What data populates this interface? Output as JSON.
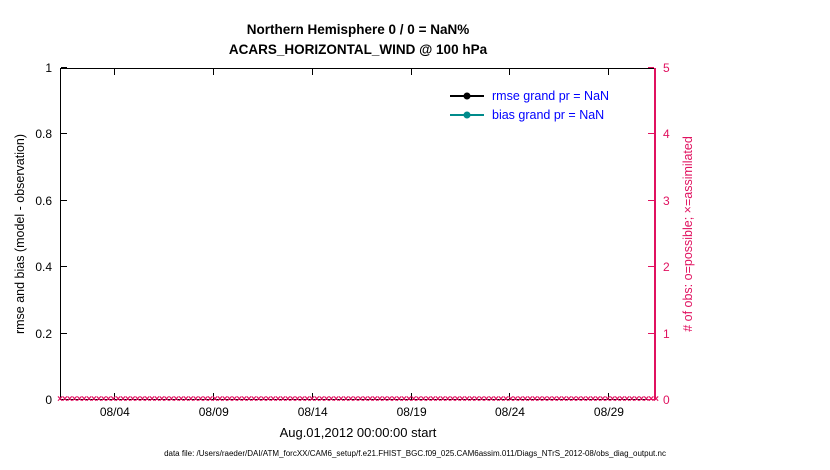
{
  "title": {
    "line1": "Northern Hemisphere 0 / 0 = NaN%",
    "line2": "ACARS_HORIZONTAL_WIND @ 100 hPa"
  },
  "axes": {
    "left_label": "rmse and bias (model - observation)",
    "right_label": "# of obs: o=possible; ×=assimilated",
    "x_label": "Aug.01,2012 00:00:00 start",
    "left_ticks": [
      "0",
      "0.2",
      "0.4",
      "0.6",
      "0.8",
      "1"
    ],
    "right_ticks": [
      "0",
      "1",
      "2",
      "3",
      "4",
      "5"
    ],
    "x_ticks": [
      "08/04",
      "08/09",
      "08/14",
      "08/19",
      "08/24",
      "08/29"
    ]
  },
  "legend": {
    "items": [
      {
        "label": "rmse grand pr = NaN",
        "color": "#000000"
      },
      {
        "label": "bias grand pr = NaN",
        "color": "#008b8b"
      }
    ],
    "text_color": "#0000ff"
  },
  "colors": {
    "axis": "#000000",
    "obs_axis": "#e0115f"
  },
  "footer": "data file: /Users/raeder/DAI/ATM_forcXX/CAM6_setup/f.e21.FHIST_BGC.f09_025.CAM6assim.011/Diags_NTrS_2012-08/obs_diag_output.nc",
  "chart_data": {
    "type": "line",
    "title": "Northern Hemisphere 0 / 0 = NaN% — ACARS_HORIZONTAL_WIND @ 100 hPa",
    "xlabel": "Aug.01,2012 00:00:00 start",
    "x_tick_labels": [
      "08/04",
      "08/09",
      "08/14",
      "08/19",
      "08/24",
      "08/29"
    ],
    "x_range": [
      "2012-08-01",
      "2012-08-31"
    ],
    "left_axis": {
      "label": "rmse and bias (model - observation)",
      "ylim": [
        0,
        1
      ]
    },
    "right_axis": {
      "label": "# of obs: o=possible; ×=assimilated",
      "ylim": [
        0,
        5
      ]
    },
    "grid": false,
    "legend_position": "top-right-inside",
    "series": [
      {
        "name": "rmse",
        "legend": "rmse grand pr = NaN",
        "axis": "left",
        "color": "#000000",
        "values": "NaN (no curve plotted)"
      },
      {
        "name": "bias",
        "legend": "bias grand pr = NaN",
        "axis": "left",
        "color": "#008b8b",
        "values": "NaN (no curve plotted)"
      },
      {
        "name": "obs-possible",
        "marker": "o",
        "axis": "right",
        "constant_value": 0
      },
      {
        "name": "obs-assimilated",
        "marker": "×",
        "axis": "right",
        "constant_value": 0
      }
    ],
    "marker_row": {
      "value": 0,
      "marker_count": 124
    },
    "notes": "rmse and bias are NaN so no curves are drawn; observation counts are 0 at every time, rendered as a dense row of × markers along y=0"
  }
}
